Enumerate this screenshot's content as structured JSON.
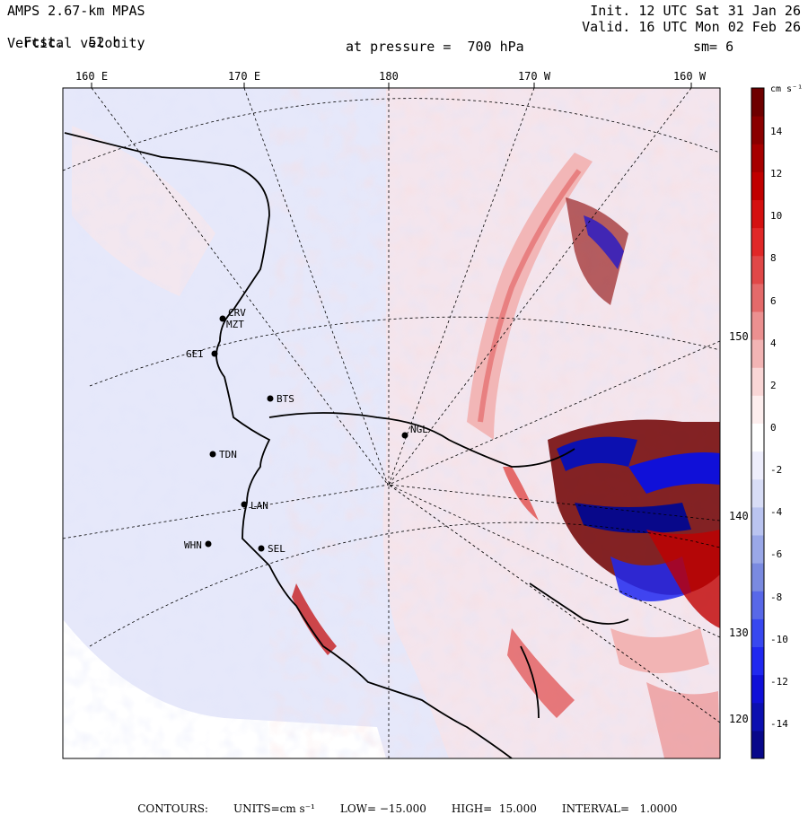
{
  "header": {
    "model": "AMPS 2.67-km MPAS",
    "fcst_label": "Fcst.",
    "fcst_value": "52 h",
    "field": "Vertical velocity",
    "init": "Init. 12 UTC Sat 31 Jan 26",
    "valid": "Valid. 16 UTC Mon 02 Feb 26",
    "pressure_text": "at pressure =  700 hPa",
    "smoothing": "sm= 6"
  },
  "longitude_labels": [
    "160 E",
    "170 E",
    "180",
    "170 W",
    "160 W"
  ],
  "latitude_labels": [
    "150 W",
    "140 W",
    "130 W",
    "120 W"
  ],
  "stations": [
    {
      "code": "CRV"
    },
    {
      "code": "MZT"
    },
    {
      "code": "GEI"
    },
    {
      "code": "BTS"
    },
    {
      "code": "TDN"
    },
    {
      "code": "LAN"
    },
    {
      "code": "WHN"
    },
    {
      "code": "SEL"
    },
    {
      "code": "NGL"
    }
  ],
  "colorbar": {
    "units": "cm s⁻¹",
    "ticks": [
      "14",
      "12",
      "10",
      "8",
      "6",
      "4",
      "2",
      "0",
      "-2",
      "-4",
      "-6",
      "-8",
      "-10",
      "-12",
      "-14"
    ],
    "colors": [
      "#08088a",
      "#0c10b0",
      "#1010d8",
      "#2028f0",
      "#3848f0",
      "#5868e8",
      "#7a8ae0",
      "#9aa8e8",
      "#bac4f0",
      "#d8ddf6",
      "#eeeefc",
      "#ffffff",
      "#fdeeee",
      "#f9d6d6",
      "#f2b4b4",
      "#eb9090",
      "#e46a6a",
      "#e04848",
      "#e02828",
      "#d41010",
      "#c00000",
      "#a60000",
      "#8a0000",
      "#6e0000"
    ]
  },
  "footer": {
    "contours": "CONTOURS:",
    "units": "UNITS=cm s⁻¹",
    "low": "LOW= −15.000",
    "high": "HIGH=  15.000",
    "interval": "INTERVAL=   1.0000"
  }
}
